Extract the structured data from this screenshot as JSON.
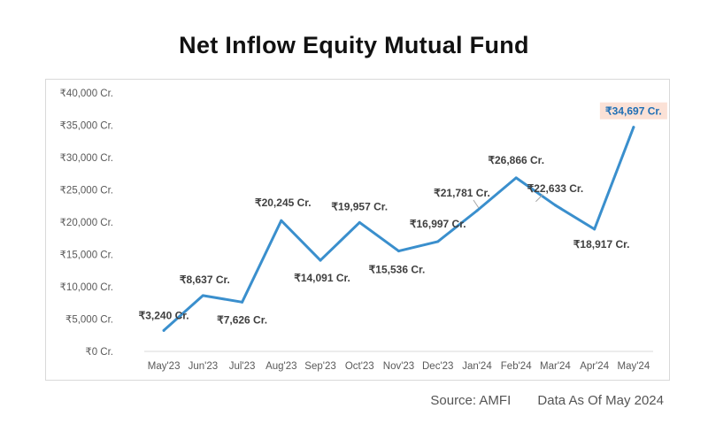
{
  "chart_data": {
    "type": "line",
    "title": "Net Inflow Equity Mutual Fund",
    "categories": [
      "May'23",
      "Jun'23",
      "Jul'23",
      "Aug'23",
      "Sep'23",
      "Oct'23",
      "Nov'23",
      "Dec'23",
      "Jan'24",
      "Feb'24",
      "Mar'24",
      "Apr'24",
      "May'24"
    ],
    "values": [
      3240,
      8637,
      7626,
      20245,
      14091,
      19957,
      15536,
      16997,
      21781,
      26866,
      22633,
      18917,
      34697
    ],
    "data_labels": [
      "₹3,240 Cr.",
      "₹8,637 Cr.",
      "₹7,626 Cr.",
      "₹20,245 Cr.",
      "₹14,091 Cr.",
      "₹19,957 Cr.",
      "₹15,536 Cr.",
      "₹16,997 Cr.",
      "₹21,781 Cr.",
      "₹26,866 Cr.",
      "₹22,633 Cr.",
      "₹18,917 Cr.",
      "₹34,697 Cr."
    ],
    "y_ticks": [
      0,
      5000,
      10000,
      15000,
      20000,
      25000,
      30000,
      35000,
      40000
    ],
    "y_tick_labels": [
      "₹0 Cr.",
      "₹5,000 Cr.",
      "₹10,000 Cr.",
      "₹15,000 Cr.",
      "₹20,000 Cr.",
      "₹25,000 Cr.",
      "₹30,000 Cr.",
      "₹35,000 Cr.",
      "₹40,000 Cr."
    ],
    "ylim": [
      0,
      40000
    ],
    "grid": false,
    "line_color": "#3a8fcd",
    "highlight_label_bg": "#fbe1d6",
    "highlight_label_color": "#1f6fb5"
  },
  "footer": {
    "source": "Source: AMFI",
    "data_as_of": "Data As Of May 2024"
  }
}
